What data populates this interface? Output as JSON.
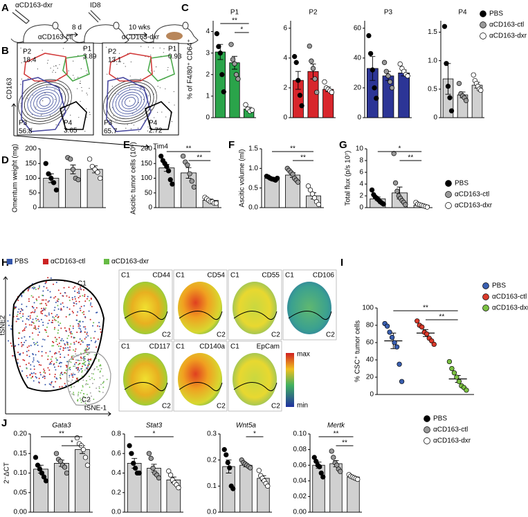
{
  "panels": [
    "A",
    "B",
    "C",
    "D",
    "E",
    "F",
    "G",
    "H",
    "I",
    "J"
  ],
  "schematic": {
    "treatment": "αCD163-dxr",
    "interval1": "8 d",
    "injection": "ID8",
    "interval2": "10 wks"
  },
  "flow": {
    "ylabel": "CD163",
    "xlabel": "Tim4",
    "plots": [
      {
        "title": "αCD163-ctl",
        "gates": [
          {
            "name": "P1",
            "value": "3.89",
            "color": "#4aa84a"
          },
          {
            "name": "P2",
            "value": "18.4",
            "color": "#d23a3a"
          },
          {
            "name": "P3",
            "value": "56.8",
            "color": "#4a4aa0"
          },
          {
            "name": "P4",
            "value": "3.65",
            "color": "#000000"
          }
        ]
      },
      {
        "title": "αCD163-dxr",
        "gates": [
          {
            "name": "P1",
            "value": "0.93",
            "color": "#4aa84a"
          },
          {
            "name": "P2",
            "value": "13.1",
            "color": "#d23a3a"
          },
          {
            "name": "P3",
            "value": "65.7",
            "color": "#4a4aa0"
          },
          {
            "name": "P4",
            "value": "2.72",
            "color": "#000000"
          }
        ]
      }
    ]
  },
  "tsne": {
    "legend": [
      {
        "name": "PBS",
        "color": "#3355aa"
      },
      {
        "name": "αCD163-ctl",
        "color": "#cc2222"
      },
      {
        "name": "αCD163-dxr",
        "color": "#66bb44"
      }
    ],
    "clusters": [
      "C1",
      "C2"
    ],
    "xlabel": "tSNE-1",
    "ylabel": "tSNE2",
    "markers": [
      "CD44",
      "CD54",
      "CD55",
      "CD106",
      "CD117",
      "CD140a",
      "EpCam"
    ],
    "scale": [
      "max",
      "min"
    ]
  },
  "legends": [
    {
      "series": [
        {
          "name": "PBS",
          "color": "#000000"
        },
        {
          "name": "αCD163-ctl",
          "color": "#999999"
        },
        {
          "name": "αCD163-dxr",
          "color": "#ffffff"
        }
      ]
    },
    {
      "series": [
        {
          "name": "PBS",
          "color": "#000000"
        },
        {
          "name": "αCD163-ctl",
          "color": "#999999"
        },
        {
          "name": "αCD163-dxr",
          "color": "#ffffff"
        }
      ]
    },
    {
      "series": [
        {
          "name": "PBS",
          "color": "#3a5fb0"
        },
        {
          "name": "αCD163-ctl",
          "color": "#d93a2b"
        },
        {
          "name": "αCD163-dxr",
          "color": "#7bc043"
        }
      ]
    },
    {
      "series": [
        {
          "name": "PBS",
          "color": "#000000"
        },
        {
          "name": "αCD163-ctl",
          "color": "#999999"
        },
        {
          "name": "αCD163-dxr",
          "color": "#ffffff"
        }
      ]
    }
  ],
  "chart_data": [
    {
      "type": "bar",
      "title": "P1",
      "title_color": "#2e9e3e",
      "ylabel": "% of F4/80⁺ CD64⁺",
      "bar_color": "#2aa44a",
      "point_colors": [
        "#000000",
        "#999999",
        "#ffffff"
      ],
      "values": [
        3.05,
        2.55,
        0.4
      ],
      "errors": [
        0.35,
        0.3,
        0.08
      ],
      "points": [
        [
          3.9,
          3.3,
          3.0,
          2.0,
          1.2
        ],
        [
          3.4,
          2.7,
          2.5,
          2.0,
          1.8
        ],
        [
          0.6,
          0.4,
          0.3,
          0.35
        ]
      ],
      "brackets": [
        {
          "label": "**",
          "groups": [
            0,
            2
          ]
        },
        {
          "label": "*",
          "groups": [
            1,
            2
          ]
        }
      ],
      "ylim": [
        0,
        4.5
      ],
      "yticks": [
        0,
        1,
        2,
        3,
        4
      ]
    },
    {
      "type": "bar",
      "title": "P2",
      "title_color": "#d8262c",
      "bar_color": "#d8262c",
      "point_colors": [
        "#000000",
        "#999999",
        "#ffffff"
      ],
      "values": [
        2.5,
        3.1,
        1.9
      ],
      "errors": [
        0.6,
        0.5,
        0.15
      ],
      "points": [
        [
          4.1,
          3.7,
          2.5,
          1.5,
          0.8
        ],
        [
          4.8,
          3.8,
          3.3,
          2.6,
          1.7
        ],
        [
          2.4,
          2.0,
          1.9,
          1.8,
          1.7
        ]
      ],
      "brackets": [],
      "ylim": [
        0,
        6.5
      ],
      "yticks": [
        0,
        2,
        4,
        6
      ]
    },
    {
      "type": "bar",
      "title": "P3",
      "title_color": "#2c3596",
      "bar_color": "#2c3596",
      "point_colors": [
        "#000000",
        "#999999",
        "#ffffff"
      ],
      "values": [
        33,
        28,
        30
      ],
      "errors": [
        8,
        3,
        2
      ],
      "points": [
        [
          55,
          43,
          32,
          20,
          13
        ],
        [
          37,
          31,
          28,
          24,
          20
        ],
        [
          36,
          33,
          31,
          29,
          28
        ]
      ],
      "brackets": [],
      "ylim": [
        0,
        65
      ],
      "yticks": [
        0,
        20,
        40,
        60
      ]
    },
    {
      "type": "bar",
      "title": "P4",
      "title_color": "#000000",
      "bar_color": "#d0d0d0",
      "point_colors": [
        "#000000",
        "#999999",
        "#ffffff"
      ],
      "values": [
        0.68,
        0.4,
        0.57
      ],
      "errors": [
        0.27,
        0.05,
        0.05
      ],
      "points": [
        [
          1.6,
          0.95,
          0.55,
          0.35,
          0.12
        ],
        [
          0.6,
          0.42,
          0.38,
          0.35,
          0.3
        ],
        [
          0.75,
          0.65,
          0.6,
          0.55,
          0.5,
          0.48
        ]
      ],
      "brackets": [],
      "ylim": [
        0,
        1.7
      ],
      "yticks": [
        0,
        0.5,
        {
          "value": 1,
          "label": "1.0"
        },
        1.5
      ]
    },
    {
      "type": "bar",
      "ylabel": "Omentum weight (mg)",
      "bar_color": "#d0d0d0",
      "point_colors": [
        "#000000",
        "#999999",
        "#ffffff"
      ],
      "values": [
        100,
        130,
        130
      ],
      "errors": [
        15,
        15,
        12
      ],
      "points": [
        [
          150,
          115,
          100,
          85,
          60
        ],
        [
          170,
          165,
          130,
          100,
          95
        ],
        [
          165,
          140,
          130,
          120,
          100
        ]
      ],
      "brackets": [],
      "ylim": [
        0,
        200
      ],
      "yticks": [
        0,
        50,
        100,
        150,
        200
      ]
    },
    {
      "type": "bar",
      "ylabel": "Ascitic tumor cells (10⁶)",
      "bar_color": "#d0d0d0",
      "point_colors": [
        "#000000",
        "#999999",
        "#ffffff"
      ],
      "values": [
        135,
        118,
        25
      ],
      "errors": [
        12,
        18,
        4
      ],
      "points": [
        [
          175,
          160,
          150,
          140,
          125,
          95,
          80
        ],
        [
          175,
          155,
          145,
          115,
          90,
          70
        ],
        [
          35,
          30,
          25,
          20,
          20,
          15,
          15
        ]
      ],
      "brackets": [
        {
          "label": "**",
          "groups": [
            0,
            2
          ]
        },
        {
          "label": "**",
          "groups": [
            1,
            2
          ]
        }
      ],
      "ylim": [
        0,
        200
      ],
      "yticks": [
        0,
        50,
        100,
        150,
        200
      ]
    },
    {
      "type": "bar",
      "ylabel": "Ascitic volume (ml)",
      "bar_color": "#d0d0d0",
      "point_colors": [
        "#000000",
        "#999999",
        "#ffffff"
      ],
      "values": [
        0.75,
        0.83,
        0.3
      ],
      "errors": [
        0.02,
        0.06,
        0.08
      ],
      "points": [
        [
          0.8,
          0.78,
          0.75,
          0.73,
          0.72,
          0.7,
          0.75
        ],
        [
          1.0,
          0.95,
          0.9,
          0.85,
          0.75,
          0.7,
          0.65
        ],
        [
          0.55,
          0.45,
          0.35,
          0.25,
          0.15,
          0.08
        ]
      ],
      "brackets": [
        {
          "label": "**",
          "groups": [
            0,
            2
          ]
        },
        {
          "label": "**",
          "groups": [
            1,
            2
          ]
        }
      ],
      "ylim": [
        0,
        1.5
      ],
      "yticks": [
        {
          "value": 0,
          "label": "0.0"
        },
        0.5,
        {
          "value": 1,
          "label": "1.0"
        },
        1.5
      ]
    },
    {
      "type": "bar",
      "ylabel": "Total flux (p/s 10⁷)",
      "bar_color": "#d0d0d0",
      "point_colors": [
        "#000000",
        "#999999",
        "#ffffff"
      ],
      "values": [
        1.5,
        2.5,
        0.4
      ],
      "errors": [
        0.3,
        1.0,
        0.1
      ],
      "points": [
        [
          3.0,
          2.2,
          1.8,
          1.6,
          1.3,
          1.0,
          0.8,
          0.6
        ],
        [
          9.2,
          4.2,
          2.8,
          2.0,
          1.6,
          1.2,
          0.9,
          0.5
        ],
        [
          0.9,
          0.6,
          0.5,
          0.4,
          0.3,
          0.2,
          0.1
        ]
      ],
      "brackets": [
        {
          "label": "*",
          "groups": [
            0,
            2
          ]
        },
        {
          "label": "**",
          "groups": [
            1,
            2
          ]
        }
      ],
      "ylim": [
        0,
        10
      ],
      "yticks": [
        0,
        2,
        4,
        6,
        8,
        10
      ]
    },
    {
      "type": "dot",
      "ylabel": "% CSC⁺ tumor cells",
      "point_colors": [
        "#3a5fb0",
        "#d93a2b",
        "#7bc043"
      ],
      "values": [
        62,
        71,
        18
      ],
      "errors": [
        9,
        4,
        4
      ],
      "points": [
        [
          82,
          79,
          72,
          66,
          60,
          55,
          35,
          15
        ],
        [
          85,
          80,
          78,
          72,
          70,
          65,
          62,
          58
        ],
        [
          38,
          30,
          25,
          20,
          15,
          10,
          8,
          5
        ]
      ],
      "brackets": [
        {
          "label": "**",
          "groups": [
            0,
            2
          ]
        },
        {
          "label": "**",
          "groups": [
            1,
            2
          ]
        }
      ],
      "ylim": [
        0,
        100
      ],
      "yticks": [
        0,
        20,
        40,
        60,
        80,
        100
      ]
    },
    {
      "type": "bar",
      "title": "Gata3",
      "ylabel": "2⁻ΔCT",
      "bar_color": "#d0d0d0",
      "point_colors": [
        "#000000",
        "#999999",
        "#ffffff"
      ],
      "values": [
        0.11,
        0.125,
        0.16
      ],
      "errors": [
        0.01,
        0.008,
        0.01
      ],
      "points": [
        [
          0.14,
          0.12,
          0.11,
          0.1,
          0.09,
          0.08
        ],
        [
          0.15,
          0.135,
          0.13,
          0.12,
          0.115,
          0.1
        ],
        [
          0.19,
          0.175,
          0.17,
          0.16,
          0.14,
          0.12
        ]
      ],
      "brackets": [
        {
          "label": "**",
          "groups": [
            0,
            2
          ]
        },
        {
          "label": "*",
          "groups": [
            1,
            2
          ]
        }
      ],
      "ylim": [
        0,
        0.2
      ],
      "yticks": [
        {
          "value": 0,
          "label": "0.00"
        },
        0.05,
        {
          "value": 0.1,
          "label": "0.10"
        },
        0.15,
        {
          "value": 0.2,
          "label": "0.20"
        }
      ]
    },
    {
      "type": "bar",
      "title": "Stat3",
      "bar_color": "#d0d0d0",
      "point_colors": [
        "#000000",
        "#999999",
        "#ffffff"
      ],
      "values": [
        0.5,
        0.45,
        0.33
      ],
      "errors": [
        0.05,
        0.04,
        0.03
      ],
      "points": [
        [
          0.68,
          0.6,
          0.5,
          0.45,
          0.4,
          0.4
        ],
        [
          0.6,
          0.55,
          0.45,
          0.4,
          0.38,
          0.35
        ],
        [
          0.42,
          0.38,
          0.33,
          0.3,
          0.28,
          0.25
        ]
      ],
      "brackets": [
        {
          "label": "*",
          "groups": [
            0,
            2
          ]
        }
      ],
      "ylim": [
        0,
        0.8
      ],
      "yticks": [
        {
          "value": 0,
          "label": "0.0"
        },
        0.2,
        0.4,
        0.6,
        0.8
      ]
    },
    {
      "type": "bar",
      "title": "Wnt5a",
      "bar_color": "#d0d0d0",
      "point_colors": [
        "#000000",
        "#999999",
        "#ffffff"
      ],
      "values": [
        0.175,
        0.18,
        0.13
      ],
      "errors": [
        0.025,
        0.006,
        0.01
      ],
      "points": [
        [
          0.24,
          0.22,
          0.19,
          0.17,
          0.1,
          0.09
        ],
        [
          0.2,
          0.19,
          0.185,
          0.18,
          0.175,
          0.17
        ],
        [
          0.16,
          0.14,
          0.13,
          0.12,
          0.11,
          0.1
        ]
      ],
      "brackets": [
        {
          "label": "*",
          "groups": [
            1,
            2
          ]
        }
      ],
      "ylim": [
        0,
        0.3
      ],
      "yticks": [
        {
          "value": 0,
          "label": "0.0"
        },
        0.1,
        0.2,
        0.3
      ]
    },
    {
      "type": "bar",
      "title": "Mertk",
      "bar_color": "#d0d0d0",
      "point_colors": [
        "#000000",
        "#999999",
        "#ffffff"
      ],
      "values": [
        0.06,
        0.062,
        0.045
      ],
      "errors": [
        0.004,
        0.004,
        0.001
      ],
      "points": [
        [
          0.07,
          0.065,
          0.06,
          0.058,
          0.05,
          0.045
        ],
        [
          0.078,
          0.07,
          0.063,
          0.06,
          0.055,
          0.052
        ],
        [
          0.048,
          0.046,
          0.045,
          0.044,
          0.043,
          0.042
        ]
      ],
      "brackets": [
        {
          "label": "**",
          "groups": [
            0,
            2
          ]
        },
        {
          "label": "**",
          "groups": [
            1,
            2
          ]
        }
      ],
      "ylim": [
        0,
        0.1
      ],
      "yticks": [
        {
          "value": 0,
          "label": "0.00"
        },
        0.02,
        0.04,
        0.06,
        0.08,
        {
          "value": 0.1,
          "label": "0.10"
        }
      ]
    }
  ]
}
